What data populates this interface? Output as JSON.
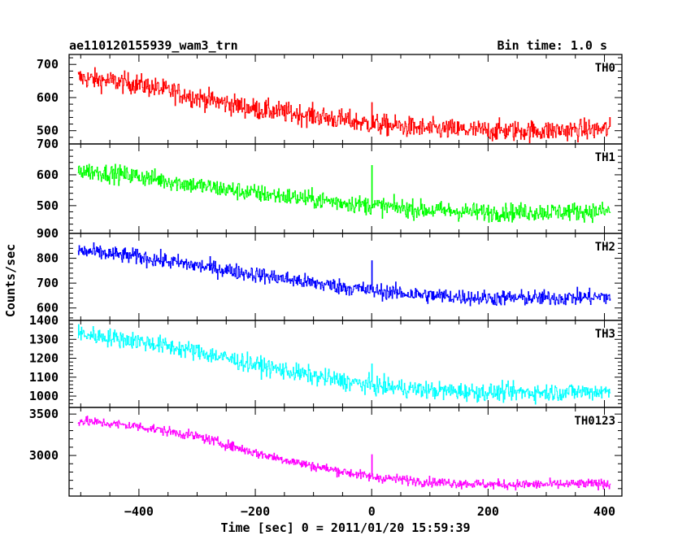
{
  "header": {
    "title": "ae110120155939_wam3_trn",
    "bin_time": "Bin time: 1.0 s"
  },
  "chart_data": {
    "type": "line",
    "title": "ae110120155939_wam3_trn",
    "subtitle": "Bin time: 1.0 s",
    "xlabel": "Time [sec] 0 = 2011/01/20 15:59:39",
    "ylabel": "Counts/sec",
    "xlim": [
      -520,
      430
    ],
    "x_ticks": [
      -400,
      -200,
      0,
      200,
      400
    ],
    "x_range": [
      -505,
      410
    ],
    "bin_time": 1.0,
    "grid": false,
    "panels": [
      {
        "name": "TH0",
        "color": "#ff0000",
        "ylim": [
          460,
          730
        ],
        "y_ticks": [
          500,
          600,
          700
        ],
        "trend": [
          [
            -505,
            660
          ],
          [
            -400,
            640
          ],
          [
            -300,
            600
          ],
          [
            -200,
            565
          ],
          [
            -100,
            545
          ],
          [
            0,
            520
          ],
          [
            100,
            505
          ],
          [
            200,
            500
          ],
          [
            300,
            500
          ],
          [
            410,
            505
          ]
        ],
        "noise": 30,
        "spike": {
          "x": 0,
          "value": 585
        }
      },
      {
        "name": "TH1",
        "color": "#00ff00",
        "ylim": [
          410,
          700
        ],
        "y_ticks": [
          500,
          600,
          700
        ],
        "trend": [
          [
            -505,
            615
          ],
          [
            -400,
            595
          ],
          [
            -300,
            565
          ],
          [
            -200,
            540
          ],
          [
            -100,
            520
          ],
          [
            0,
            500
          ],
          [
            100,
            485
          ],
          [
            200,
            478
          ],
          [
            300,
            480
          ],
          [
            410,
            482
          ]
        ],
        "noise": 28,
        "spike": {
          "x": 0,
          "value": 630
        }
      },
      {
        "name": "TH2",
        "color": "#0000ff",
        "ylim": [
          550,
          900
        ],
        "y_ticks": [
          600,
          700,
          800,
          900
        ],
        "trend": [
          [
            -505,
            830
          ],
          [
            -400,
            805
          ],
          [
            -300,
            770
          ],
          [
            -200,
            735
          ],
          [
            -100,
            700
          ],
          [
            0,
            670
          ],
          [
            100,
            650
          ],
          [
            200,
            640
          ],
          [
            300,
            640
          ],
          [
            410,
            645
          ]
        ],
        "noise": 30,
        "spike": {
          "x": 0,
          "value": 790
        }
      },
      {
        "name": "TH3",
        "color": "#00ffff",
        "ylim": [
          940,
          1400
        ],
        "y_ticks": [
          1000,
          1100,
          1200,
          1300,
          1400
        ],
        "trend": [
          [
            -505,
            1330
          ],
          [
            -400,
            1290
          ],
          [
            -300,
            1235
          ],
          [
            -200,
            1165
          ],
          [
            -100,
            1105
          ],
          [
            0,
            1055
          ],
          [
            100,
            1030
          ],
          [
            200,
            1020
          ],
          [
            300,
            1020
          ],
          [
            410,
            1025
          ]
        ],
        "noise": 45,
        "spike": {
          "x": 0,
          "value": 1170
        }
      },
      {
        "name": "TH0123",
        "color": "#ff00ff",
        "ylim": [
          2510,
          3580
        ],
        "y_ticks": [
          3000,
          3500
        ],
        "trend": [
          [
            -505,
            3420
          ],
          [
            -400,
            3350
          ],
          [
            -300,
            3230
          ],
          [
            -200,
            3030
          ],
          [
            -100,
            2870
          ],
          [
            0,
            2740
          ],
          [
            100,
            2680
          ],
          [
            200,
            2650
          ],
          [
            300,
            2650
          ],
          [
            410,
            2660
          ]
        ],
        "noise": 55,
        "spike": {
          "x": 0,
          "value": 3010
        }
      }
    ]
  }
}
